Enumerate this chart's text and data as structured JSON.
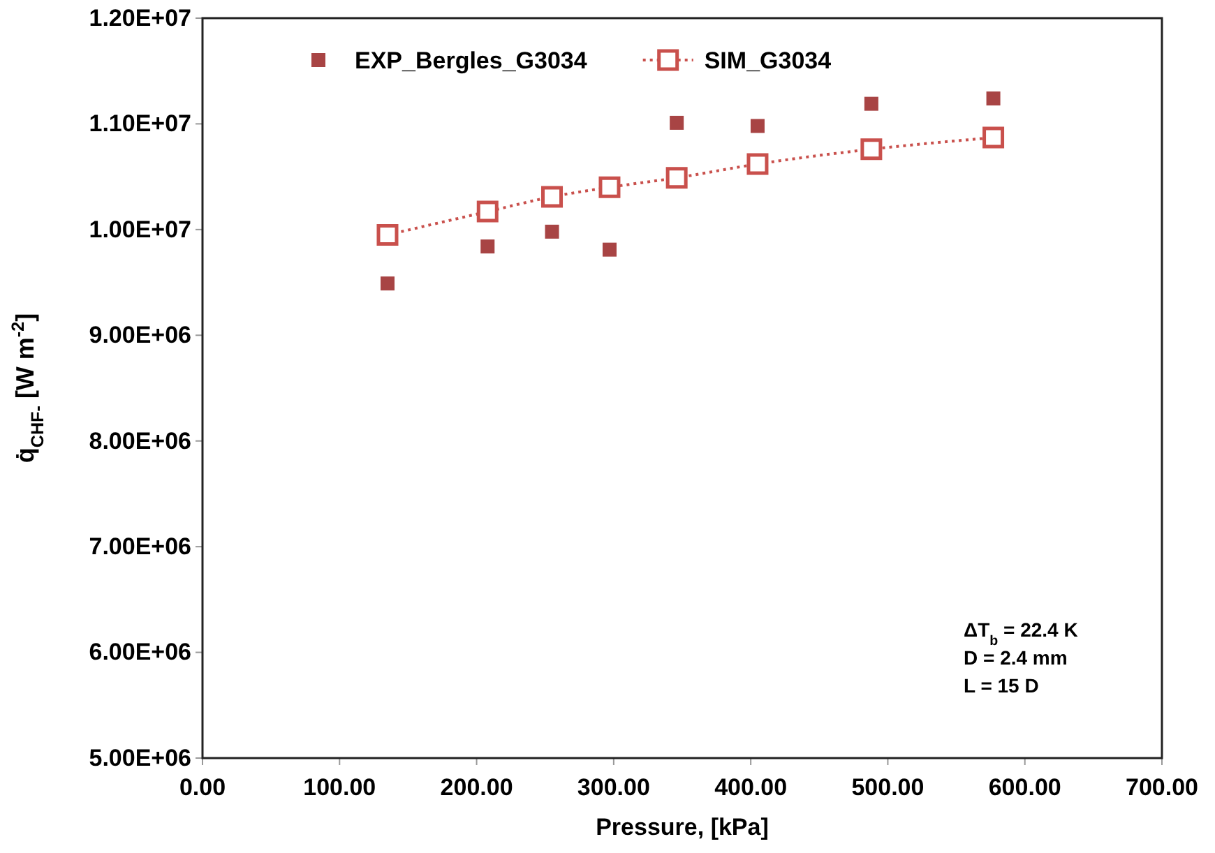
{
  "chart_data": {
    "type": "scatter",
    "xlabel": "Pressure,  [kPa]",
    "ylabel": "q̇$_{CHF-}$ [W m$^{-2}$]",
    "xlim": [
      0,
      700
    ],
    "xticks": [
      {
        "value": 0,
        "label": "0.00"
      },
      {
        "value": 100,
        "label": "100.00"
      },
      {
        "value": 200,
        "label": "200.00"
      },
      {
        "value": 300,
        "label": "300.00"
      },
      {
        "value": 400,
        "label": "400.00"
      },
      {
        "value": 500,
        "label": "500.00"
      },
      {
        "value": 600,
        "label": "600.00"
      },
      {
        "value": 700,
        "label": "700.00"
      }
    ],
    "ylim": [
      5000000,
      12000000
    ],
    "yticks": [
      {
        "value": 5000000,
        "label": "5.00E+06"
      },
      {
        "value": 6000000,
        "label": "6.00E+06"
      },
      {
        "value": 7000000,
        "label": "7.00E+06"
      },
      {
        "value": 8000000,
        "label": "8.00E+06"
      },
      {
        "value": 9000000,
        "label": "9.00E+06"
      },
      {
        "value": 10000000,
        "label": "1.00E+07"
      },
      {
        "value": 11000000,
        "label": "1.10E+07"
      },
      {
        "value": 12000000,
        "label": "1.20E+07"
      }
    ],
    "x": [
      135,
      208,
      255,
      297,
      346,
      405,
      488,
      577
    ],
    "series": [
      {
        "name": "EXP_Bergles_G3034",
        "marker": "square",
        "color": "#a84444",
        "values": [
          9490000,
          9840000,
          9980000,
          9810000,
          11010000,
          10980000,
          11190000,
          11240000
        ]
      },
      {
        "name": "SIM_G3034",
        "type": "line",
        "marker": "square",
        "line_style": "dotted",
        "color": "#c9504c",
        "values": [
          9950000,
          10170000,
          10310000,
          10400000,
          10490000,
          10620000,
          10760000,
          10870000
        ]
      }
    ],
    "annotations": [
      "ΔT$_{b}$ = 22.4 K",
      "D = 2.4 mm",
      "L = 15 D"
    ],
    "legend": "top left",
    "grid": false
  }
}
